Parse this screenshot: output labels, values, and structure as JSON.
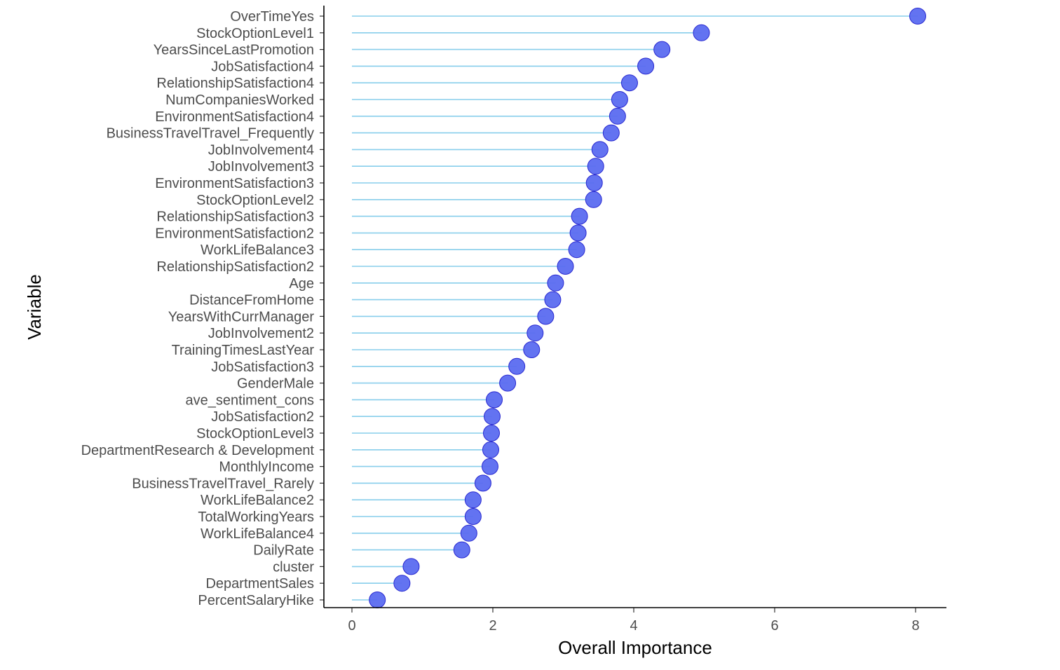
{
  "chart_data": {
    "type": "lollipop",
    "orientation": "horizontal",
    "xlabel": "Overall Importance",
    "ylabel": "Variable",
    "xlim": [
      -0.35,
      8.45
    ],
    "xticks": [
      0,
      2,
      4,
      6,
      8
    ],
    "grid": false,
    "legend": "none",
    "colors": {
      "stem": "#87CEEB",
      "point_fill": "#5B6CF0",
      "point_stroke": "#2828D0",
      "axis": "#000000"
    },
    "categories": [
      "OverTimeYes",
      "StockOptionLevel1",
      "YearsSinceLastPromotion",
      "JobSatisfaction4",
      "RelationshipSatisfaction4",
      "NumCompaniesWorked",
      "EnvironmentSatisfaction4",
      "BusinessTravelTravel_Frequently",
      "JobInvolvement4",
      "JobInvolvement3",
      "EnvironmentSatisfaction3",
      "StockOptionLevel2",
      "RelationshipSatisfaction3",
      "EnvironmentSatisfaction2",
      "WorkLifeBalance3",
      "RelationshipSatisfaction2",
      "Age",
      "DistanceFromHome",
      "YearsWithCurrManager",
      "JobInvolvement2",
      "TrainingTimesLastYear",
      "JobSatisfaction3",
      "GenderMale",
      "ave_sentiment_cons",
      "JobSatisfaction2",
      "StockOptionLevel3",
      "DepartmentResearch & Development",
      "MonthlyIncome",
      "BusinessTravelTravel_Rarely",
      "WorkLifeBalance2",
      "TotalWorkingYears",
      "WorkLifeBalance4",
      "DailyRate",
      "cluster",
      "DepartmentSales",
      "PercentSalaryHike"
    ],
    "values": [
      8.03,
      4.96,
      4.4,
      4.17,
      3.94,
      3.8,
      3.77,
      3.68,
      3.52,
      3.46,
      3.44,
      3.43,
      3.23,
      3.21,
      3.19,
      3.03,
      2.89,
      2.85,
      2.75,
      2.6,
      2.55,
      2.34,
      2.21,
      2.02,
      1.99,
      1.98,
      1.97,
      1.96,
      1.86,
      1.72,
      1.72,
      1.66,
      1.56,
      0.84,
      0.71,
      0.36
    ]
  }
}
